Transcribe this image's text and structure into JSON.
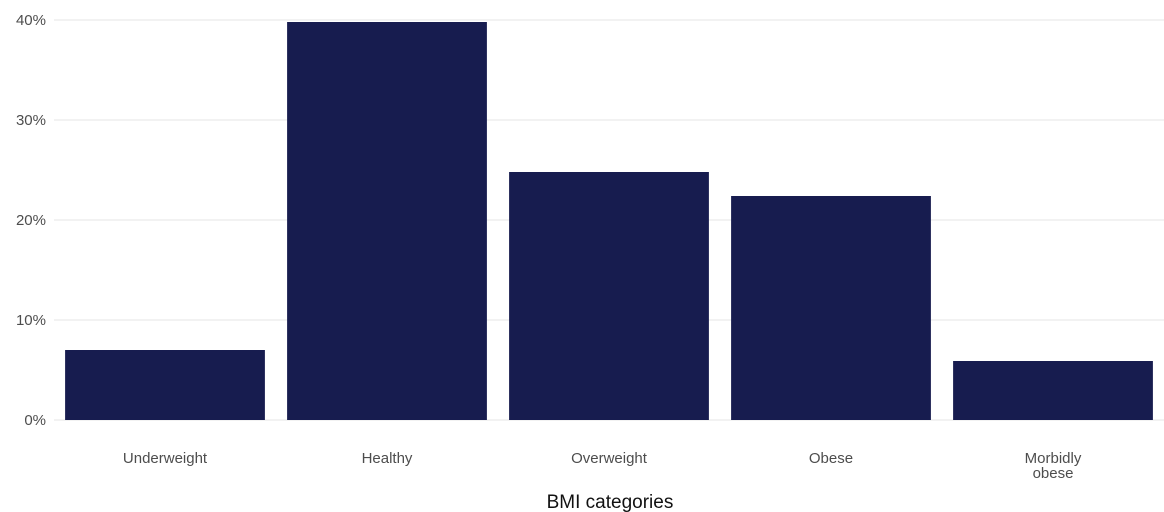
{
  "chart_data": {
    "type": "bar",
    "categories": [
      [
        "Underweight"
      ],
      [
        "Healthy"
      ],
      [
        "Overweight"
      ],
      [
        "Obese"
      ],
      [
        "Morbidly",
        "obese"
      ]
    ],
    "values": [
      7.0,
      39.8,
      24.8,
      22.4,
      5.9
    ],
    "xlabel": "BMI categories",
    "ylabel": "",
    "ylim": [
      0,
      40
    ],
    "yticks": [
      0,
      10,
      20,
      30,
      40
    ],
    "ytick_labels": [
      "0%",
      "10%",
      "20%",
      "30%",
      "40%"
    ],
    "grid": true,
    "bar_color": "#171c4f"
  }
}
